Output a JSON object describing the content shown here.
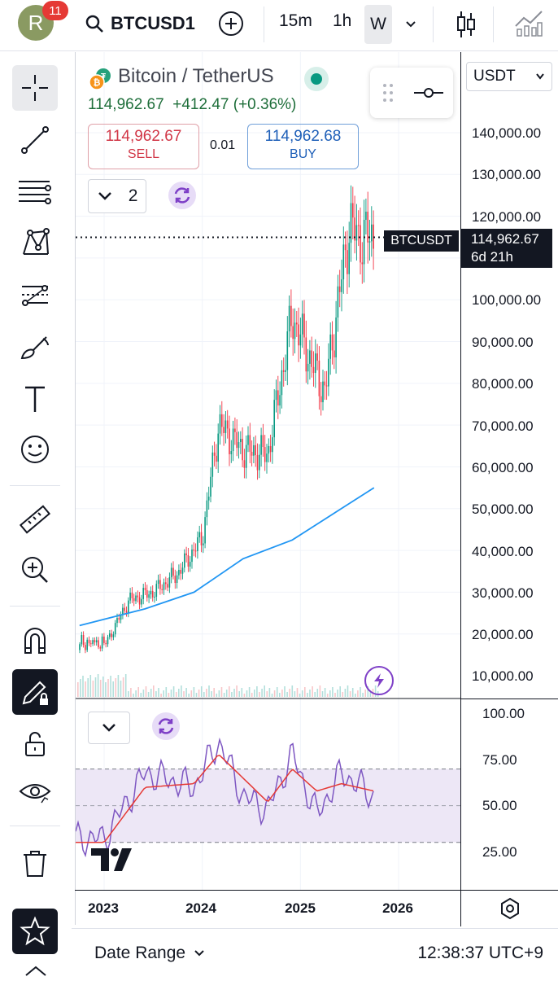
{
  "header": {
    "avatar_letter": "R",
    "notification_count": "11",
    "symbol": "BTCUSD1",
    "timeframes": [
      "15m",
      "1h",
      "W"
    ],
    "active_timeframe": "W"
  },
  "sidebar": {
    "tools": [
      "crosshair-icon",
      "trend-line-icon",
      "fib-icon",
      "pattern-icon",
      "forecast-icon",
      "brush-icon",
      "text-icon",
      "emoji-icon",
      "ruler-icon",
      "zoom-in-icon",
      "magnet-icon",
      "lock-drawing-icon",
      "unlock-icon",
      "eye-icon",
      "trash-icon",
      "favorites-star-icon"
    ]
  },
  "legend": {
    "title": "Bitcoin / TetherUS",
    "price": "114,962.67",
    "change": "+412.47 (+0.36%)",
    "sell_price": "114,962.67",
    "sell_label": "SELL",
    "buy_price": "114,962.68",
    "buy_label": "BUY",
    "spread": "0.01",
    "indicator_count": "2"
  },
  "price_axis": {
    "currency": "USDT",
    "ticks": [
      "140,000.00",
      "130,000.00",
      "120,000.00",
      "100,000.00",
      "90,000.00",
      "80,000.00",
      "70,000.00",
      "60,000.00",
      "50,000.00",
      "40,000.00",
      "30,000.00",
      "20,000.00",
      "10,000.00"
    ],
    "last_label": "BTCUSDT",
    "last_price": "114,962.67",
    "countdown": "6d 21h"
  },
  "rsi_axis": {
    "ticks": [
      "100.00",
      "75.00",
      "50.00",
      "25.00"
    ]
  },
  "time_axis": {
    "labels": [
      "2023",
      "2024",
      "2025",
      "2026"
    ]
  },
  "footer": {
    "date_range": "Date Range",
    "clock": "12:38:37 UTC+9"
  },
  "colors": {
    "up": "#089981",
    "down": "#f23645",
    "ma": "#2196f3",
    "rsi": "#7e57c2",
    "rsi_ma": "#e53935",
    "rsi_band": "#ede7f6"
  },
  "chart_data": {
    "type": "line",
    "price_series_approx": {
      "x": [
        "2023-01",
        "2023-04",
        "2023-07",
        "2023-10",
        "2024-01",
        "2024-03",
        "2024-06",
        "2024-09",
        "2024-12",
        "2025-03",
        "2025-04",
        "2025-07",
        "2025-08",
        "2025-10"
      ],
      "close": [
        17000,
        28000,
        30000,
        34500,
        43000,
        70000,
        64000,
        63000,
        96000,
        82000,
        78000,
        118000,
        115000,
        114962
      ]
    },
    "ma_series_approx": {
      "x": [
        "2022-10",
        "2023-06",
        "2023-12",
        "2024-06",
        "2024-12",
        "2025-06",
        "2025-10"
      ],
      "values": [
        22000,
        26000,
        30000,
        38000,
        42500,
        50000,
        55000
      ]
    },
    "rsi_series_approx": {
      "x": [
        "2023-01",
        "2023-06",
        "2023-12",
        "2024-03",
        "2024-06",
        "2024-09",
        "2024-12",
        "2025-03",
        "2025-06",
        "2025-10"
      ],
      "rsi": [
        32,
        68,
        60,
        85,
        55,
        48,
        78,
        45,
        68,
        55
      ],
      "rsi_ma": [
        30,
        60,
        62,
        78,
        65,
        52,
        70,
        58,
        62,
        58
      ]
    },
    "price_range": [
      10000,
      140000
    ],
    "rsi_range": [
      20,
      100
    ]
  }
}
